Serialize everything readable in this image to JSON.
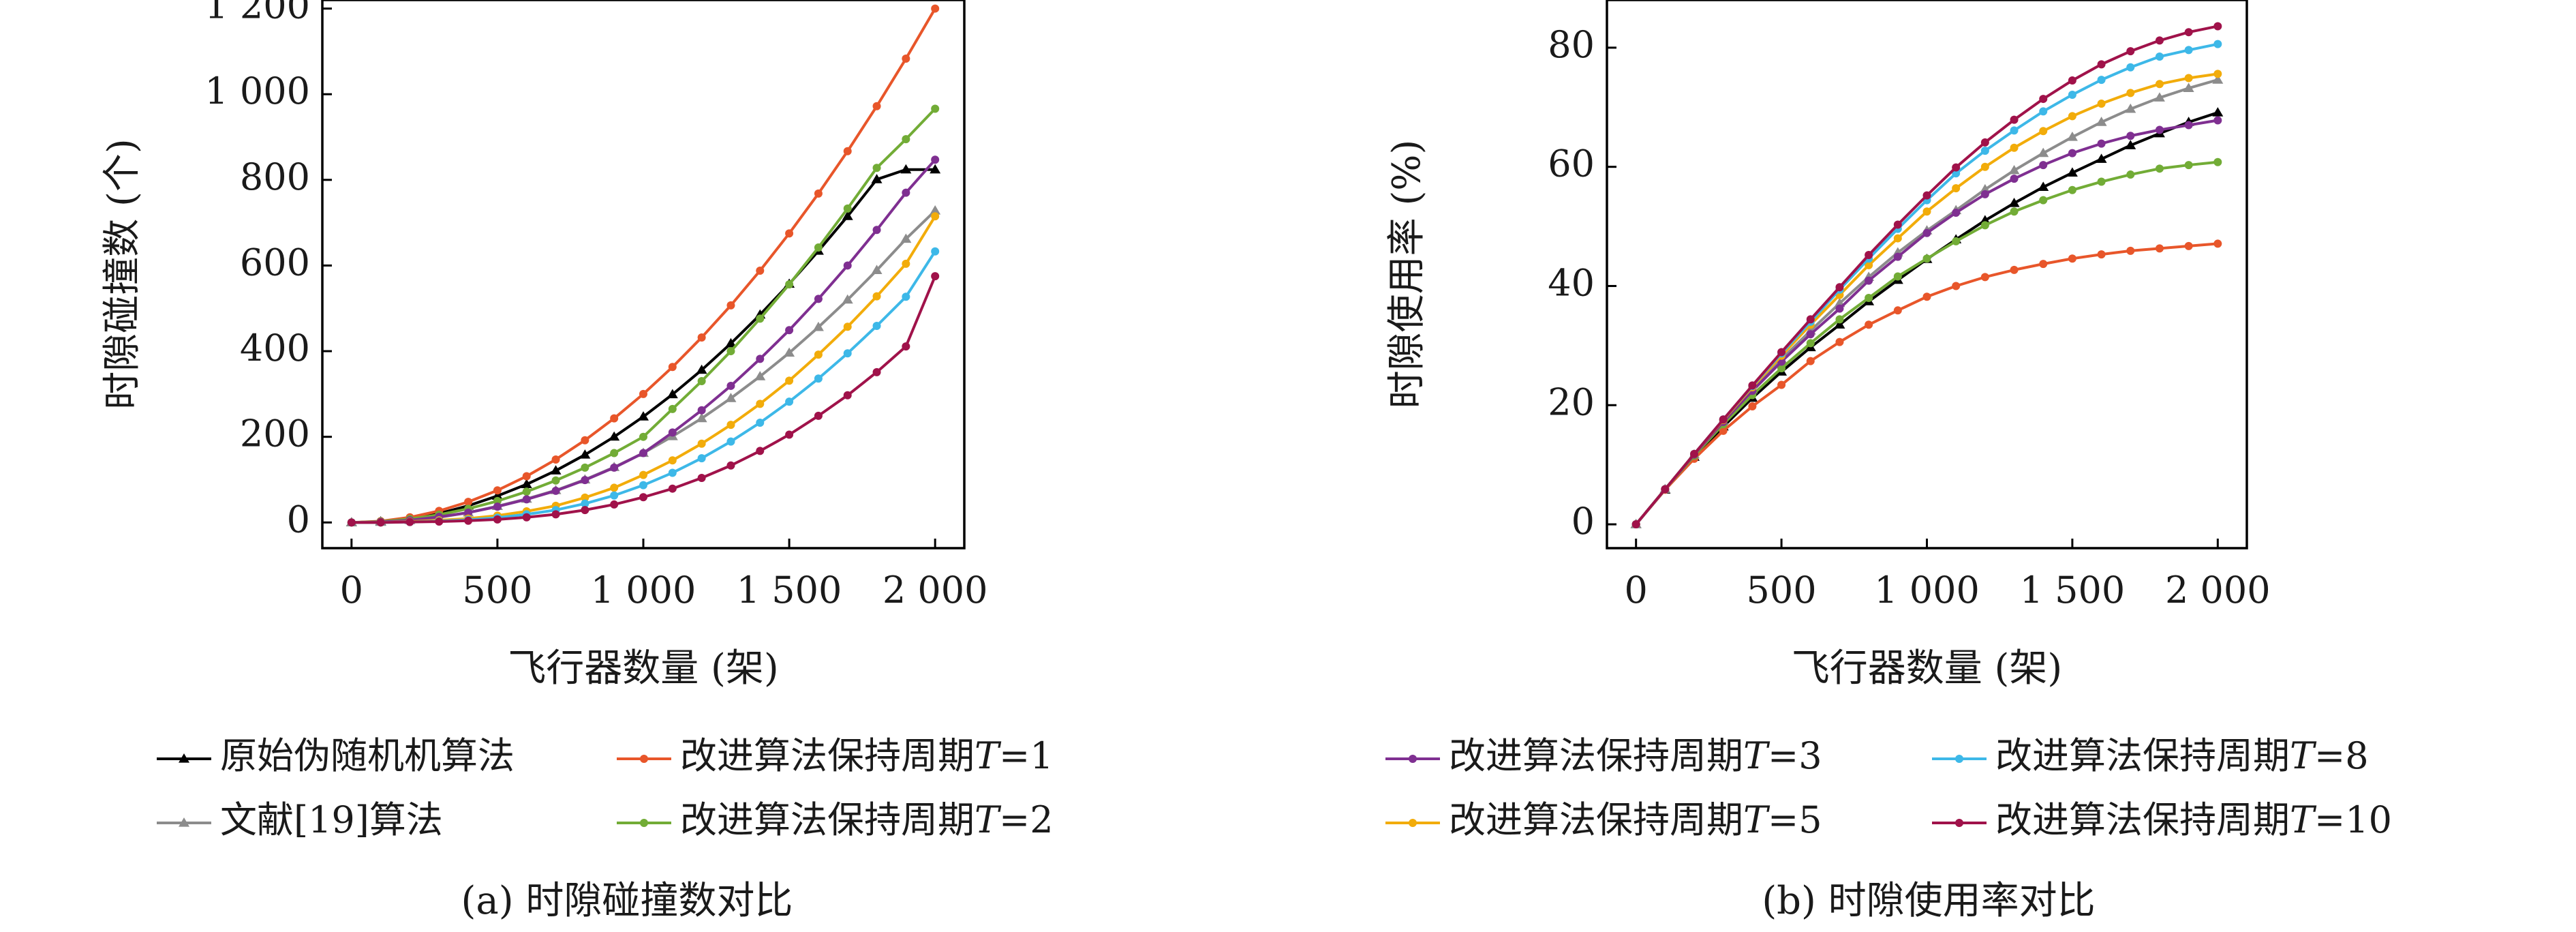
{
  "legend_a": {
    "items": [
      {
        "label": "原始伪随机机算法",
        "color": "#000000",
        "marker": "triangle"
      },
      {
        "label": "改进算法保持周期T=1",
        "color": "#e8562a",
        "marker": "dot"
      },
      {
        "label": "文献[19]算法",
        "color": "#8c8c8c",
        "marker": "triangle"
      },
      {
        "label": "改进算法保持周期T=2",
        "color": "#72ac36",
        "marker": "dot"
      }
    ]
  },
  "legend_b": {
    "items": [
      {
        "label": "改进算法保持周期T=3",
        "color": "#7f2f91",
        "marker": "dot"
      },
      {
        "label": "改进算法保持周期T=8",
        "color": "#3db8e8",
        "marker": "dot"
      },
      {
        "label": "改进算法保持周期T=5",
        "color": "#f2ac0a",
        "marker": "dot"
      },
      {
        "label": "改进算法保持周期T=10",
        "color": "#a0124a",
        "marker": "dot"
      }
    ]
  },
  "chart_data": [
    {
      "type": "line",
      "caption": "(a) 时隙碰撞数对比",
      "title": "",
      "xlabel": "飞行器数量 (架)",
      "ylabel": "时隙碰撞数 (个)",
      "xlim": [
        -100,
        2100
      ],
      "ylim": [
        -60,
        1220
      ],
      "x_ticks": [
        0,
        500,
        1000,
        1500,
        2000
      ],
      "x_tick_labels": [
        "0",
        "500",
        "1 000",
        "1 500",
        "2 000"
      ],
      "y_ticks": [
        0,
        200,
        400,
        600,
        800,
        1000,
        1200
      ],
      "y_tick_labels": [
        "0",
        "200",
        "400",
        "600",
        "800",
        "1 000",
        "1 200"
      ],
      "grid": false,
      "x": [
        0,
        100,
        200,
        300,
        400,
        500,
        600,
        700,
        800,
        900,
        1000,
        1100,
        1200,
        1300,
        1400,
        1500,
        1600,
        1700,
        1800,
        1900,
        2000
      ],
      "series": [
        {
          "name": "原始伪随机机算法",
          "color": "#000000",
          "marker": "triangle",
          "values": [
            0,
            2,
            8,
            21,
            39,
            62,
            89,
            121,
            158,
            200,
            247,
            299,
            356,
            418,
            485,
            557,
            634,
            715,
            801,
            824,
            824
          ]
        },
        {
          "name": "改进算法保持周期T=1",
          "color": "#e8562a",
          "marker": "dot",
          "values": [
            0,
            3,
            12,
            27,
            48,
            75,
            108,
            147,
            192,
            243,
            300,
            363,
            432,
            507,
            588,
            675,
            768,
            867,
            972,
            1083,
            1200
          ]
        },
        {
          "name": "文献[19]算法",
          "color": "#8c8c8c",
          "marker": "triangle",
          "values": [
            0,
            1,
            5,
            12,
            23,
            38,
            55,
            75,
            100,
            129,
            162,
            201,
            243,
            290,
            341,
            396,
            456,
            520,
            589,
            662,
            728
          ]
        },
        {
          "name": "改进算法保持周期T=2",
          "color": "#72ac36",
          "marker": "dot",
          "values": [
            0,
            2,
            8,
            18,
            32,
            50,
            72,
            98,
            128,
            162,
            200,
            265,
            330,
            400,
            476,
            556,
            642,
            733,
            828,
            895,
            966
          ]
        },
        {
          "name": "改进算法保持周期T=3",
          "color": "#7f2f91",
          "marker": "dot",
          "values": [
            0,
            1,
            5,
            13,
            23,
            37,
            54,
            74,
            99,
            128,
            162,
            210,
            262,
            319,
            382,
            449,
            522,
            600,
            683,
            770,
            847
          ]
        },
        {
          "name": "改进算法保持周期T=5",
          "color": "#f2ac0a",
          "marker": "dot",
          "values": [
            0,
            0,
            2,
            5,
            9,
            16,
            26,
            39,
            58,
            81,
            111,
            145,
            184,
            228,
            277,
            331,
            392,
            457,
            528,
            604,
            715
          ]
        },
        {
          "name": "改进算法保持周期T=8",
          "color": "#3db8e8",
          "marker": "dot",
          "values": [
            0,
            0,
            1,
            3,
            6,
            11,
            19,
            29,
            44,
            63,
            87,
            116,
            150,
            189,
            233,
            282,
            336,
            395,
            459,
            527,
            633
          ]
        },
        {
          "name": "改进算法保持周期T=10",
          "color": "#a0124a",
          "marker": "dot",
          "values": [
            0,
            0,
            1,
            2,
            4,
            7,
            12,
            19,
            29,
            42,
            59,
            79,
            104,
            133,
            167,
            205,
            249,
            297,
            351,
            411,
            575
          ]
        }
      ]
    },
    {
      "type": "line",
      "caption": "(b) 时隙使用率对比",
      "title": "",
      "xlabel": "飞行器数量 (架)",
      "ylabel": "时隙使用率 (%)",
      "xlim": [
        -100,
        2100
      ],
      "ylim": [
        -4,
        88
      ],
      "x_ticks": [
        0,
        500,
        1000,
        1500,
        2000
      ],
      "x_tick_labels": [
        "0",
        "500",
        "1 000",
        "1 500",
        "2 000"
      ],
      "y_ticks": [
        0,
        20,
        40,
        60,
        80
      ],
      "y_tick_labels": [
        "0",
        "20",
        "40",
        "60",
        "80"
      ],
      "grid": false,
      "x": [
        0,
        100,
        200,
        300,
        400,
        500,
        600,
        700,
        800,
        900,
        1000,
        1100,
        1200,
        1300,
        1400,
        1500,
        1600,
        1700,
        1800,
        1900,
        2000
      ],
      "series": [
        {
          "name": "原始伪随机机算法",
          "color": "#000000",
          "marker": "triangle",
          "values": [
            0,
            5.8,
            11.3,
            16.4,
            21.2,
            25.6,
            29.7,
            33.5,
            37.4,
            41.0,
            44.5,
            47.8,
            51.0,
            53.9,
            56.6,
            59.0,
            61.3,
            63.6,
            65.6,
            67.5,
            69.1
          ]
        },
        {
          "name": "改进算法保持周期T=1",
          "color": "#e8562a",
          "marker": "dot",
          "values": [
            0,
            5.8,
            11.0,
            15.7,
            19.8,
            23.4,
            27.4,
            30.6,
            33.5,
            35.9,
            38.2,
            40.0,
            41.5,
            42.7,
            43.7,
            44.6,
            45.3,
            45.9,
            46.3,
            46.7,
            47.1
          ]
        },
        {
          "name": "文献[19]算法",
          "color": "#8c8c8c",
          "marker": "triangle",
          "values": [
            0,
            5.9,
            11.7,
            17.3,
            22.6,
            27.7,
            32.5,
            37.1,
            41.5,
            45.6,
            49.3,
            52.7,
            56.2,
            59.4,
            62.3,
            65.0,
            67.5,
            69.7,
            71.6,
            73.2,
            74.6
          ]
        },
        {
          "name": "改进算法保持周期T=2",
          "color": "#72ac36",
          "marker": "dot",
          "values": [
            0,
            5.9,
            11.5,
            16.8,
            21.7,
            26.2,
            30.4,
            34.4,
            38.0,
            41.6,
            44.6,
            47.5,
            50.2,
            52.5,
            54.4,
            56.1,
            57.5,
            58.7,
            59.7,
            60.3,
            60.8
          ]
        },
        {
          "name": "改进算法保持周期T=3",
          "color": "#7f2f91",
          "marker": "dot",
          "values": [
            0,
            5.9,
            11.7,
            17.2,
            22.4,
            27.3,
            31.9,
            36.2,
            40.9,
            44.9,
            48.9,
            52.3,
            55.4,
            58.0,
            60.3,
            62.3,
            63.9,
            65.2,
            66.2,
            67.0,
            67.8
          ]
        },
        {
          "name": "改进算法保持周期T=5",
          "color": "#f2ac0a",
          "marker": "dot",
          "values": [
            0,
            5.9,
            11.8,
            17.5,
            23.0,
            28.3,
            33.5,
            38.5,
            43.5,
            48.0,
            52.5,
            56.4,
            60.0,
            63.2,
            66.0,
            68.5,
            70.6,
            72.4,
            73.9,
            74.9,
            75.6
          ]
        },
        {
          "name": "改进算法保持周期T=8",
          "color": "#3db8e8",
          "marker": "dot",
          "values": [
            0,
            5.9,
            11.8,
            17.6,
            23.2,
            28.7,
            34.0,
            39.4,
            44.6,
            49.6,
            54.4,
            58.9,
            62.7,
            66.1,
            69.3,
            72.1,
            74.6,
            76.7,
            78.5,
            79.6,
            80.6
          ]
        },
        {
          "name": "改进算法保持周期T=10",
          "color": "#a0124a",
          "marker": "dot",
          "values": [
            0,
            5.9,
            11.8,
            17.6,
            23.3,
            28.9,
            34.4,
            39.8,
            45.2,
            50.3,
            55.2,
            59.9,
            64.1,
            67.9,
            71.4,
            74.5,
            77.2,
            79.4,
            81.2,
            82.6,
            83.6
          ]
        }
      ]
    }
  ]
}
